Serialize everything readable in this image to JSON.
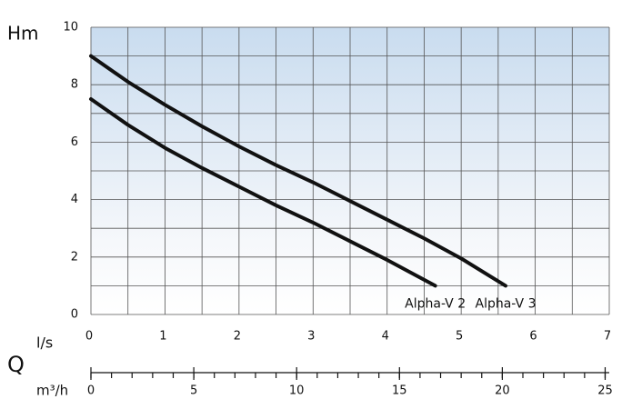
{
  "chart_data": {
    "type": "line",
    "y_label": "Hm",
    "x_label": "l/s",
    "x2_title": "Q",
    "x2_label": "m³/h",
    "xlim": [
      0,
      7
    ],
    "xticks": [
      0,
      1,
      2,
      3,
      4,
      5,
      6,
      7
    ],
    "ylim": [
      0,
      10
    ],
    "yticks": [
      0,
      2,
      4,
      6,
      8,
      10
    ],
    "xgrid": [
      0,
      0.5,
      1,
      1.5,
      2,
      2.5,
      3,
      3.5,
      4,
      4.5,
      5,
      5.5,
      6,
      6.5,
      7
    ],
    "ygrid": [
      0,
      1,
      2,
      3,
      4,
      5,
      6,
      7,
      8,
      9,
      10
    ],
    "x2lim": [
      0,
      25.2
    ],
    "x2ticks": [
      0,
      5,
      10,
      15,
      20,
      25
    ],
    "x2_minor_ticks": [
      0,
      1,
      2,
      3,
      4,
      5,
      6,
      7,
      8,
      9,
      10,
      11,
      12,
      13,
      14,
      15,
      16,
      17,
      18,
      19,
      20,
      21,
      22,
      23,
      24,
      25
    ],
    "grid": true,
    "series": [
      {
        "name": "Alpha-V 2",
        "color": "#111111",
        "x": [
          0,
          0.5,
          1,
          1.5,
          2,
          2.5,
          3,
          3.5,
          4,
          4.65
        ],
        "values": [
          7.5,
          6.6,
          5.8,
          5.1,
          4.45,
          3.8,
          3.2,
          2.55,
          1.9,
          1.0
        ]
      },
      {
        "name": "Alpha-V 3",
        "color": "#111111",
        "x": [
          0,
          0.5,
          1,
          1.5,
          2,
          2.5,
          3,
          3.5,
          4,
          4.5,
          5,
          5.6
        ],
        "values": [
          9.0,
          8.1,
          7.3,
          6.55,
          5.85,
          5.2,
          4.6,
          3.95,
          3.3,
          2.65,
          1.95,
          1.0
        ]
      }
    ]
  }
}
